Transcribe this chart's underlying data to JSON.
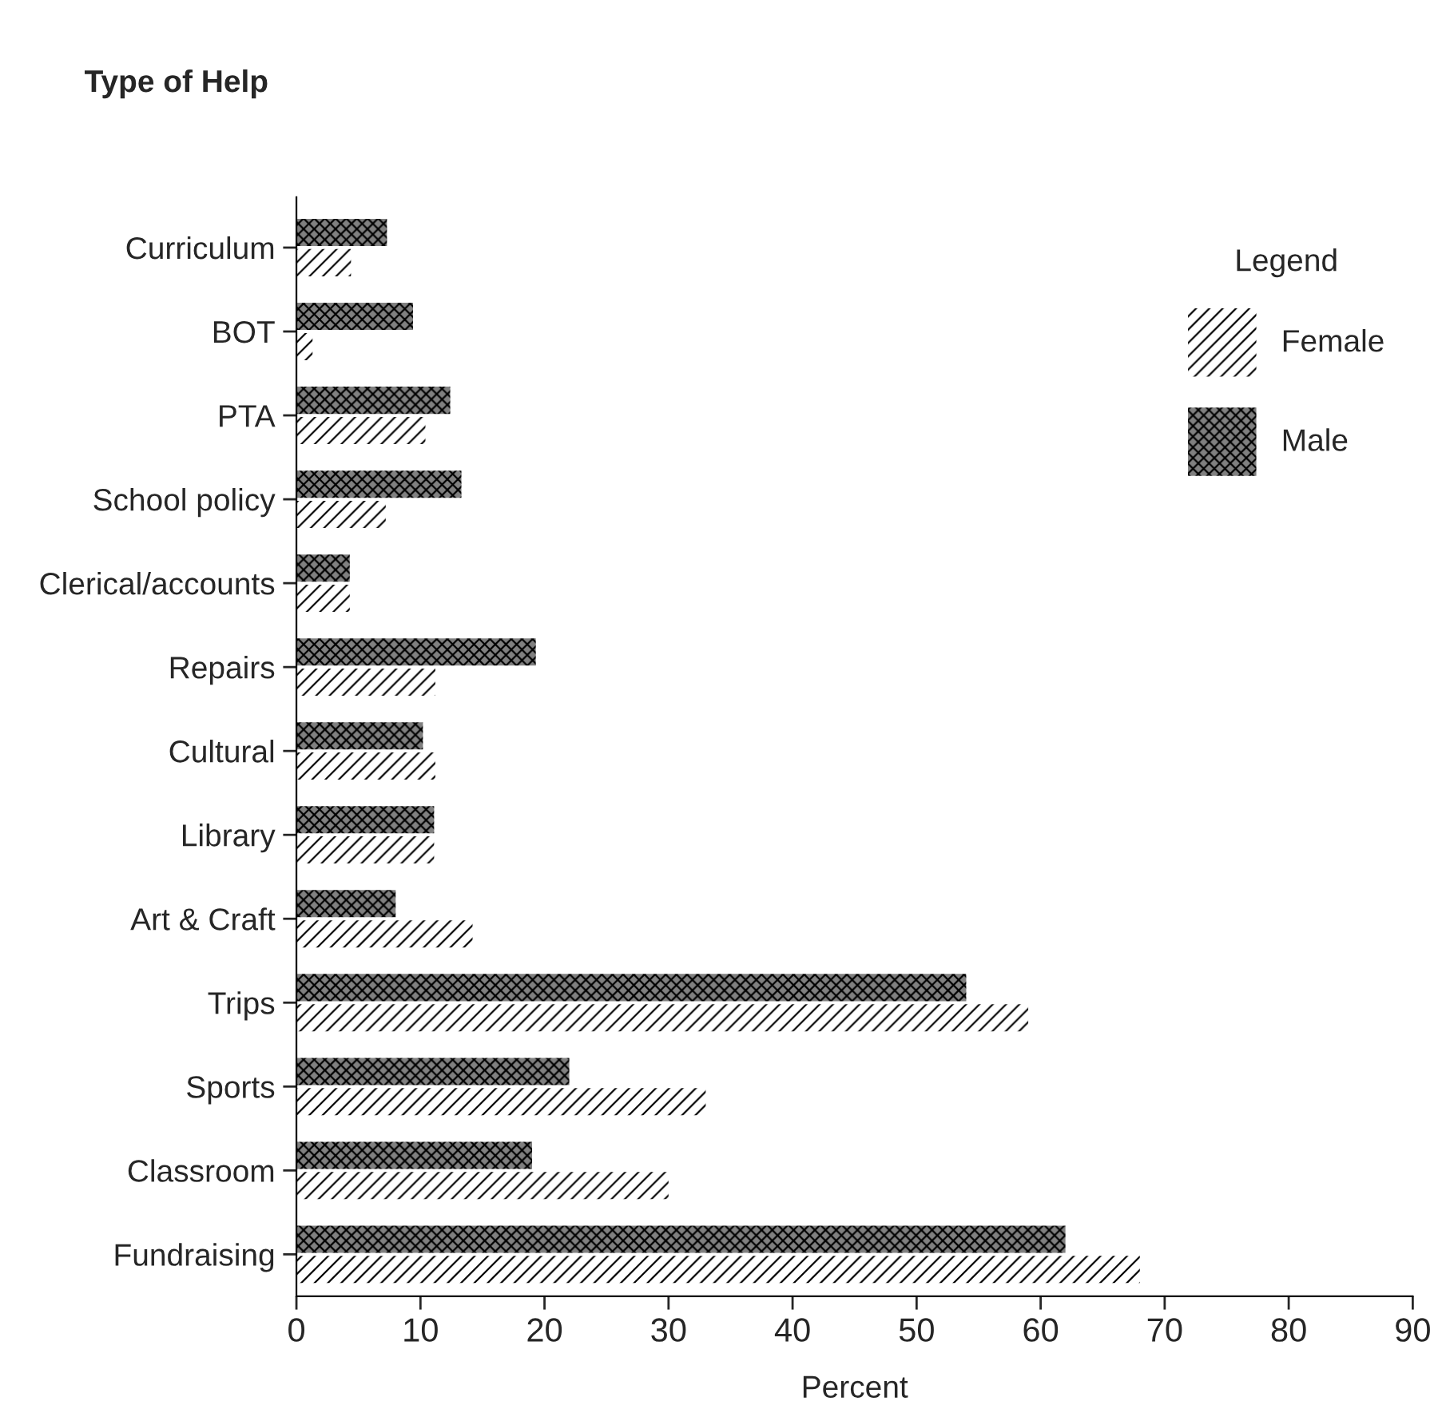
{
  "chart_data": {
    "type": "bar",
    "orientation": "horizontal",
    "ylabel": "Type of Help",
    "xlabel": "Percent",
    "legend_title": "Legend",
    "legend": "right",
    "categories": [
      "Curriculum",
      "BOT",
      "PTA",
      "School policy",
      "Clerical/accounts",
      "Repairs",
      "Cultural",
      "Library",
      "Art & Craft",
      "Trips",
      "Sports",
      "Classroom",
      "Fundraising"
    ],
    "series": [
      {
        "name": "Male",
        "color": "#808080",
        "values": [
          7.3,
          9.4,
          12.4,
          13.3,
          4.3,
          19.3,
          10.2,
          11.1,
          8.0,
          54,
          22,
          19,
          62
        ]
      },
      {
        "name": "Female",
        "color": "#ffffff",
        "values": [
          4.4,
          1.3,
          10.4,
          7.2,
          4.3,
          11.2,
          11.2,
          11.1,
          14.2,
          59,
          33,
          30,
          68
        ]
      }
    ],
    "xlim": [
      0,
      90
    ],
    "xticks": [
      0,
      10,
      20,
      30,
      40,
      50,
      60,
      70,
      80,
      90
    ],
    "grid": false
  }
}
